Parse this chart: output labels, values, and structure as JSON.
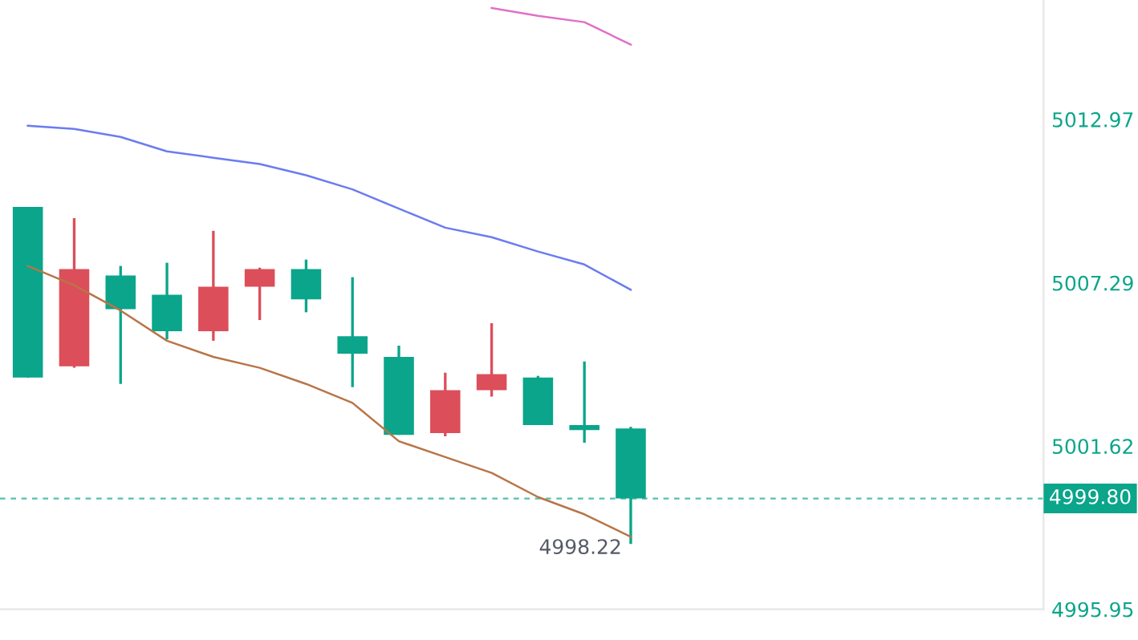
{
  "chart_data": {
    "type": "candlestick",
    "categories": [
      null,
      null,
      null,
      null,
      null,
      null,
      null,
      null,
      null,
      null,
      null,
      null,
      null,
      null
    ],
    "ohlc": [
      [
        5009.93,
        5009.93,
        5004.0,
        5004.0
      ],
      [
        5004.39,
        5009.54,
        5004.34,
        5007.77
      ],
      [
        5007.55,
        5007.88,
        5003.78,
        5006.38
      ],
      [
        5006.88,
        5007.99,
        5005.33,
        5005.61
      ],
      [
        5005.61,
        5009.1,
        5005.28,
        5007.16
      ],
      [
        5007.16,
        5007.82,
        5006.0,
        5007.77
      ],
      [
        5007.77,
        5008.1,
        5006.27,
        5006.72
      ],
      [
        5005.44,
        5007.49,
        5003.67,
        5004.83
      ],
      [
        5004.72,
        5005.11,
        5002.01,
        5002.01
      ],
      [
        5002.07,
        5004.17,
        5001.96,
        5003.56
      ],
      [
        5003.56,
        5005.89,
        5003.34,
        5004.12
      ],
      [
        5004.0,
        5004.06,
        5002.35,
        5002.35
      ],
      [
        5002.35,
        5004.56,
        5001.74,
        5002.18
      ],
      [
        5002.23,
        5002.29,
        4998.22,
        4999.8
      ]
    ],
    "colors": [
      "#0aa58a",
      "#dc4e5a",
      "#0aa58a",
      "#0aa58a",
      "#dc4e5a",
      "#dc4e5a",
      "#0aa58a",
      "#0aa58a",
      "#0aa58a",
      "#dc4e5a",
      "#dc4e5a",
      "#0aa58a",
      "#0aa58a",
      "#0aa58a"
    ],
    "series": [
      {
        "type": "line",
        "color": "#e070c8",
        "values": [
          null,
          null,
          null,
          null,
          null,
          null,
          null,
          null,
          null,
          null,
          5016.84,
          5016.57,
          5016.35,
          5015.57
        ]
      },
      {
        "type": "line",
        "color": "#6b7cf0",
        "values": [
          5012.75,
          5012.64,
          5012.36,
          5011.86,
          5011.64,
          5011.42,
          5011.03,
          5010.54,
          5009.87,
          5009.21,
          5008.88,
          5008.38,
          5007.93,
          5007.05
        ]
      },
      {
        "type": "line",
        "color": "#b87548",
        "values": [
          5007.88,
          5007.21,
          5006.33,
          5005.28,
          5004.72,
          5004.34,
          5003.78,
          5003.12,
          5001.79,
          5001.24,
          5000.69,
          4999.85,
          4999.25,
          4998.47
        ]
      }
    ],
    "ylim": [
      4995.95,
      5017.12
    ],
    "yticks": [
      5012.97,
      5007.29,
      5001.62,
      4995.95
    ],
    "ref_lines": [
      {
        "axis": "y",
        "value": 4999.8,
        "label": "4999.80",
        "color": "#0aa58a",
        "line_style": "dashed"
      }
    ],
    "annotations": [
      "4998.22"
    ],
    "tick_labels": "y"
  }
}
